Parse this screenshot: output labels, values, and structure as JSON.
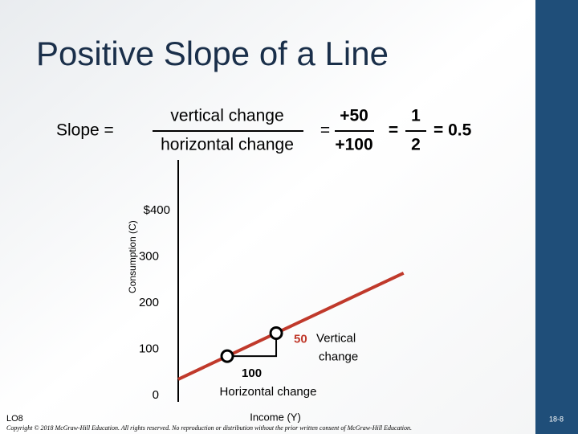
{
  "slide": {
    "title": "Positive Slope of a Line",
    "formula": {
      "lhs": "Slope =",
      "numerator": "vertical change",
      "denominator": "horizontal change",
      "equals_1": "=",
      "numerator_2": "+50",
      "denominator_2": "+100",
      "equals_2": "=",
      "numerator_3": "1",
      "denominator_3": "2",
      "result": "= 0.5"
    },
    "footer": {
      "objective": "LO8",
      "copyright": "Copyright © 2018 McGraw-Hill Education. All rights reserved. No reproduction or distribution without the prior written consent of McGraw-Hill Education.",
      "page": "18-8"
    }
  },
  "chart_data": {
    "type": "line",
    "x_label": "Income (Y)",
    "y_label": "Consumption (C)",
    "xlim": [
      0,
      685
    ],
    "ylim": [
      0,
      510
    ],
    "yticks": [
      0,
      100,
      200,
      300,
      {
        "value": 400,
        "label": "$400"
      }
    ],
    "grid": false,
    "series": [
      {
        "name": "Consumption",
        "color": "#c0392b",
        "x": [
          0,
          460
        ],
        "values": [
          35,
          265
        ]
      }
    ],
    "points": {
      "x": [
        100,
        200
      ],
      "values": [
        85,
        135
      ]
    },
    "annotations": {
      "vertical_value": "50",
      "vertical_text_1": "Vertical",
      "vertical_text_2": "change",
      "horizontal_value": "100",
      "horizontal_text": "Horizontal change"
    }
  }
}
